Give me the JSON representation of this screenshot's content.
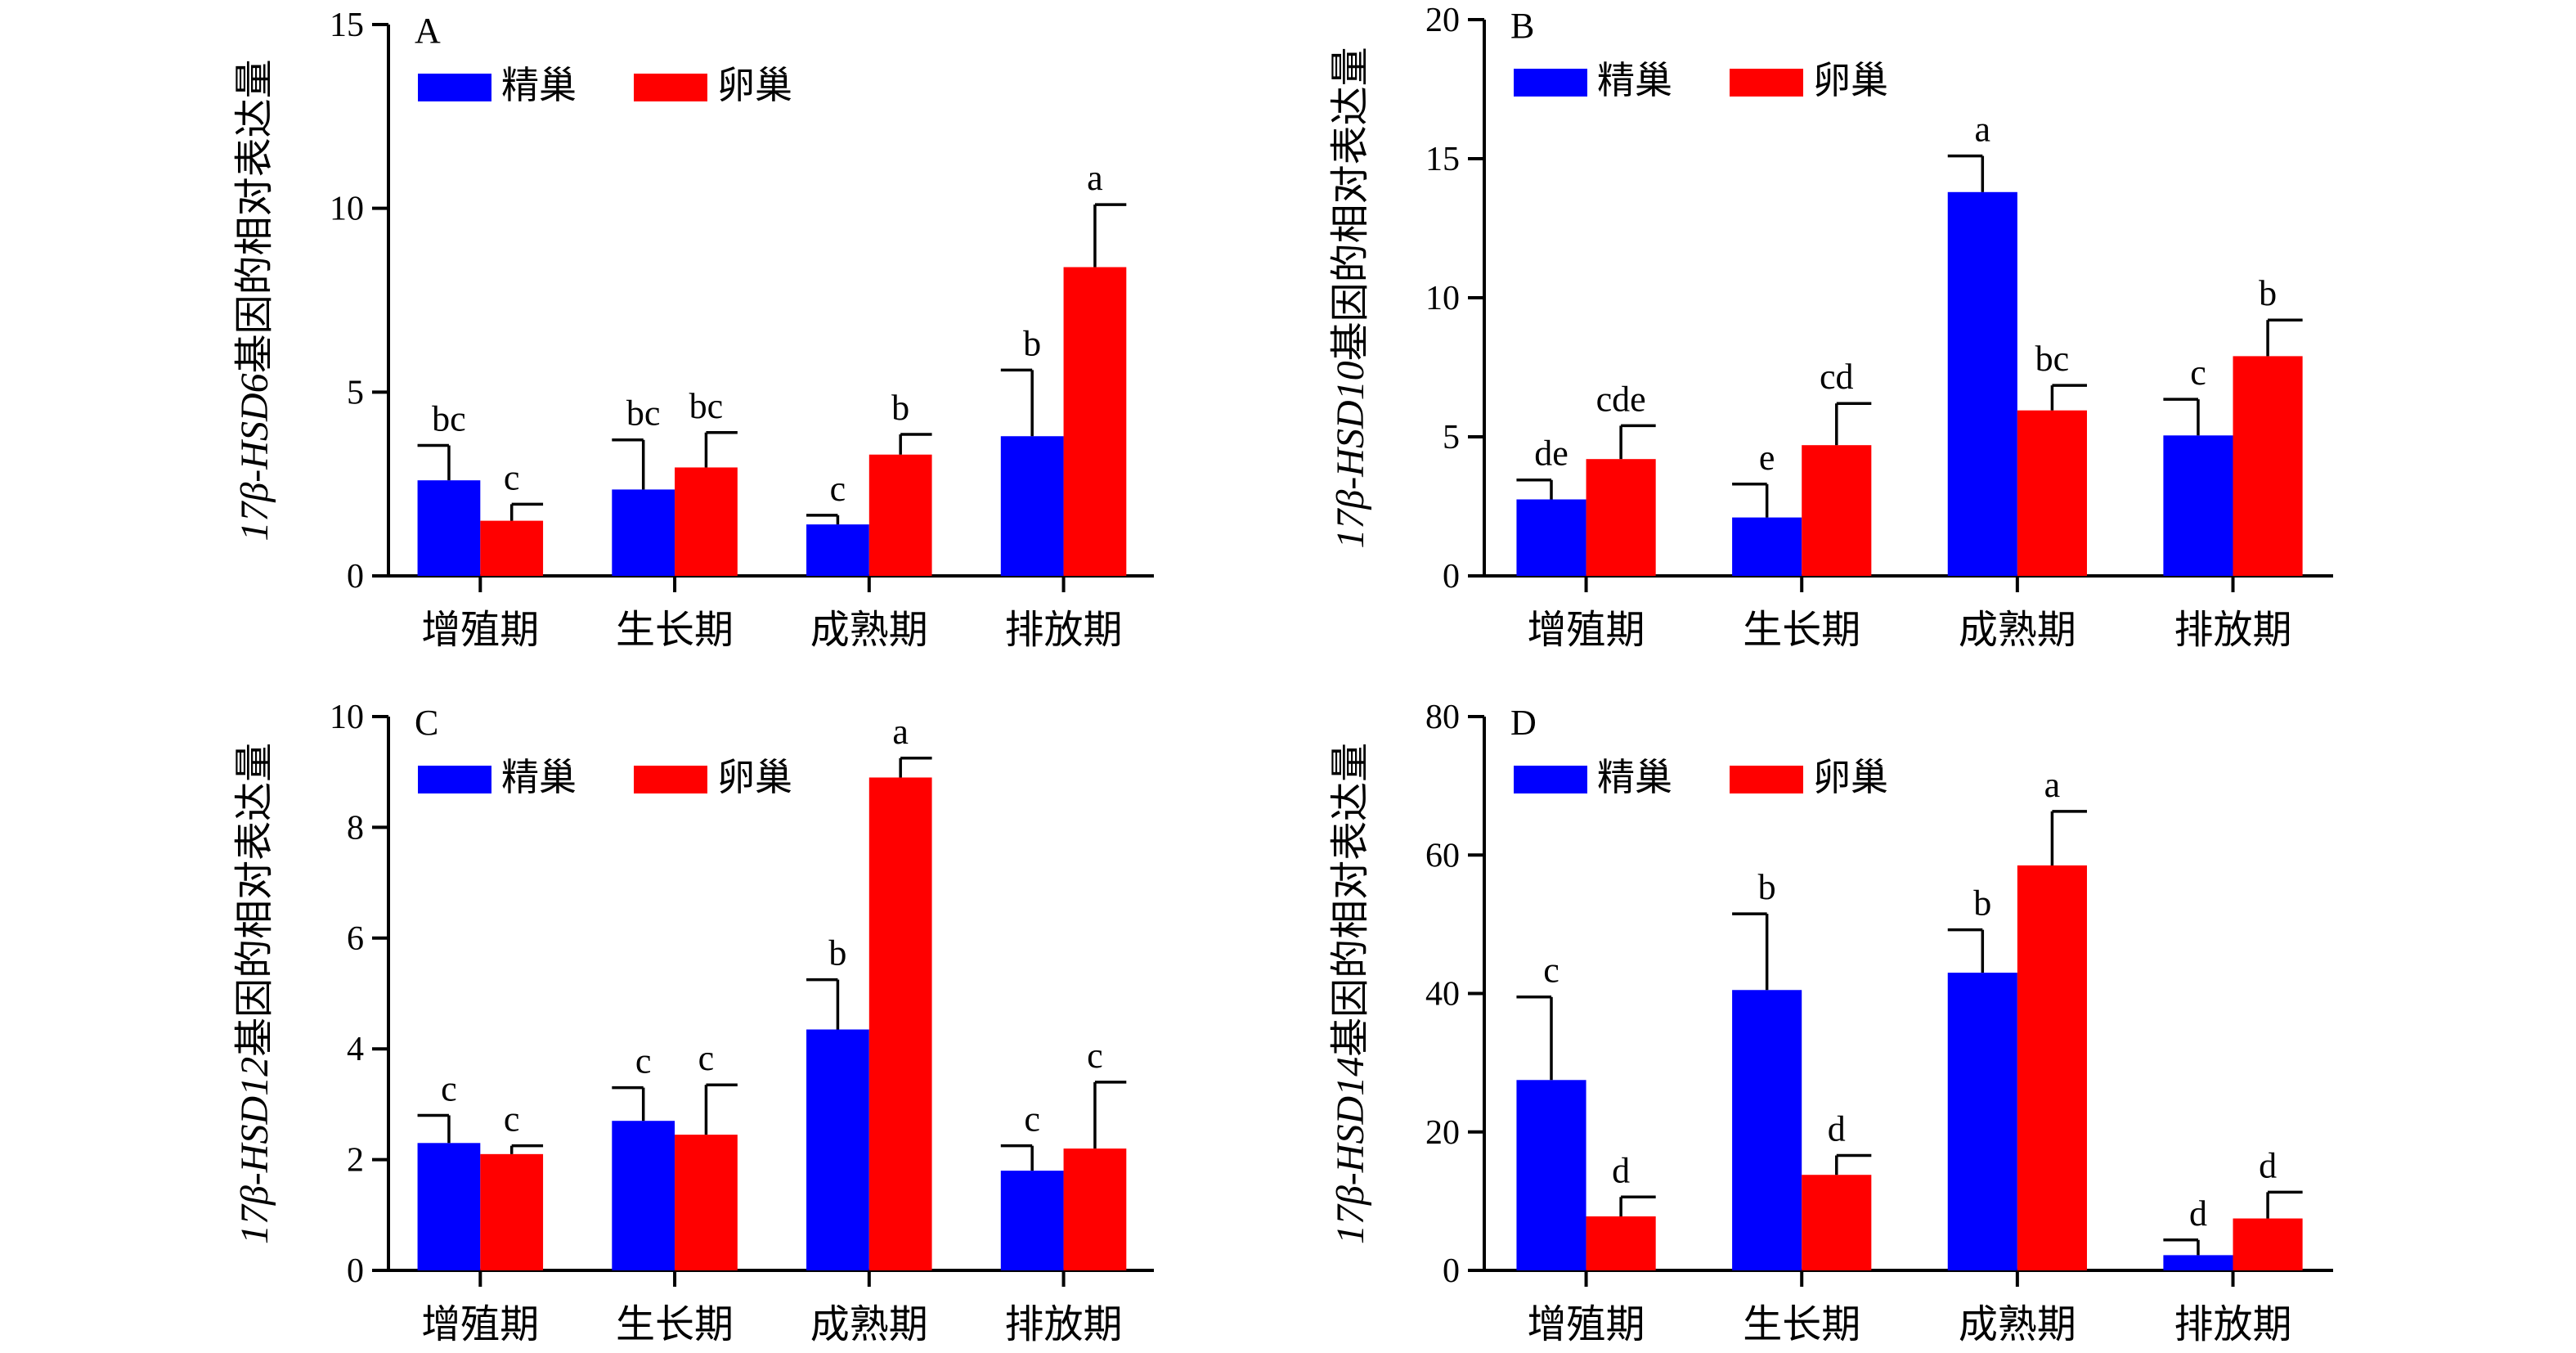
{
  "legend_labels": [
    "精巢",
    "卵巢"
  ],
  "series_colors": [
    "#0000ff",
    "#ff0000"
  ],
  "chart_data": [
    {
      "type": "bar",
      "panel": "A",
      "categories": [
        "增殖期",
        "生长期",
        "成熟期",
        "排放期"
      ],
      "ylabel_italic": "17β-HSD6",
      "ylabel_rest": "基因的相对表达量",
      "ylim": [
        0,
        15
      ],
      "yticks": [
        0,
        5,
        10,
        15
      ],
      "legend_position": "top-left",
      "grid": false,
      "series": [
        {
          "name": "精巢",
          "values": [
            2.6,
            2.35,
            1.4,
            3.8
          ],
          "errors": [
            0.95,
            1.35,
            0.25,
            1.8
          ],
          "letters": [
            "bc",
            "bc",
            "c",
            "b"
          ]
        },
        {
          "name": "卵巢",
          "values": [
            1.5,
            2.95,
            3.3,
            8.4
          ],
          "errors": [
            0.45,
            0.95,
            0.55,
            1.7
          ],
          "letters": [
            "c",
            "bc",
            "b",
            "a"
          ]
        }
      ]
    },
    {
      "type": "bar",
      "panel": "B",
      "categories": [
        "增殖期",
        "生长期",
        "成熟期",
        "排放期"
      ],
      "ylabel_italic": "17β-HSD10",
      "ylabel_rest": "基因的相对表达量",
      "ylim": [
        0,
        20
      ],
      "yticks": [
        0,
        5,
        10,
        15,
        20
      ],
      "legend_position": "top-left",
      "grid": false,
      "series": [
        {
          "name": "精巢",
          "values": [
            2.75,
            2.1,
            13.8,
            5.05
          ],
          "errors": [
            0.7,
            1.2,
            1.3,
            1.3
          ],
          "letters": [
            "de",
            "e",
            "a",
            "c"
          ]
        },
        {
          "name": "卵巢",
          "values": [
            4.2,
            4.7,
            5.95,
            7.9
          ],
          "errors": [
            1.2,
            1.5,
            0.9,
            1.3
          ],
          "letters": [
            "cde",
            "cd",
            "bc",
            "b"
          ]
        }
      ]
    },
    {
      "type": "bar",
      "panel": "C",
      "categories": [
        "增殖期",
        "生长期",
        "成熟期",
        "排放期"
      ],
      "ylabel_italic": "17β-HSD12",
      "ylabel_rest": "基因的相对表达量",
      "ylim": [
        0,
        10
      ],
      "yticks": [
        0,
        2,
        4,
        6,
        8,
        10
      ],
      "legend_position": "top-left",
      "grid": false,
      "series": [
        {
          "name": "精巢",
          "values": [
            2.3,
            2.7,
            4.35,
            1.8
          ],
          "errors": [
            0.5,
            0.6,
            0.9,
            0.45
          ],
          "letters": [
            "c",
            "c",
            "b",
            "c"
          ]
        },
        {
          "name": "卵巢",
          "values": [
            2.1,
            2.45,
            8.9,
            2.2
          ],
          "errors": [
            0.15,
            0.9,
            0.35,
            1.2
          ],
          "letters": [
            "c",
            "c",
            "a",
            "c"
          ]
        }
      ]
    },
    {
      "type": "bar",
      "panel": "D",
      "categories": [
        "增殖期",
        "生长期",
        "成熟期",
        "排放期"
      ],
      "ylabel_italic": "17β-HSD14",
      "ylabel_rest": "基因的相对表达量",
      "ylim": [
        0,
        80
      ],
      "yticks": [
        0,
        20,
        40,
        60,
        80
      ],
      "legend_position": "top-left",
      "grid": false,
      "series": [
        {
          "name": "精巢",
          "values": [
            27.5,
            40.5,
            43,
            2.2
          ],
          "errors": [
            12,
            11,
            6.2,
            2.2
          ],
          "letters": [
            "c",
            "b",
            "b",
            "d"
          ]
        },
        {
          "name": "卵巢",
          "values": [
            7.8,
            13.8,
            58.5,
            7.5
          ],
          "errors": [
            2.8,
            2.8,
            7.8,
            3.8
          ],
          "letters": [
            "d",
            "d",
            "a",
            "d"
          ]
        }
      ]
    }
  ]
}
